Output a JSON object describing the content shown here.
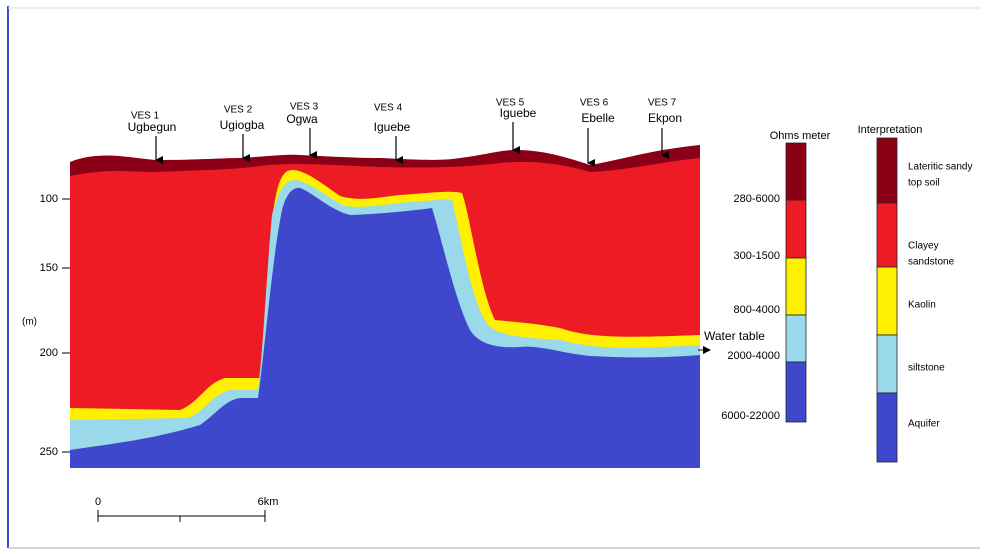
{
  "stations": [
    {
      "id": "VES 1",
      "name": "Ugbegun"
    },
    {
      "id": "VES 2",
      "name": "Ugiogba"
    },
    {
      "id": "VES 3",
      "name": "Ogwa"
    },
    {
      "id": "VES 4",
      "name": "Iguebe"
    },
    {
      "id": "VES 5",
      "name": "Iguebe"
    },
    {
      "id": "VES 6",
      "name": "Ebelle"
    },
    {
      "id": "VES 7",
      "name": "Ekpon"
    }
  ],
  "y_axis": {
    "unit": "(m)",
    "ticks": [
      100,
      150,
      200,
      250
    ]
  },
  "water_table": "Water table",
  "resistivity": {
    "title": "Ohms meter",
    "ranges": [
      "280-6000",
      "300-1500",
      "800-4000",
      "2000-4000",
      "6000-22000"
    ]
  },
  "interpretation": {
    "title": "Interpretation",
    "layers": [
      [
        "Lateritic sandy",
        "top soil"
      ],
      [
        "Clayey",
        "sandstone"
      ],
      [
        "Kaolin"
      ],
      [
        "siltstone"
      ],
      [
        "Aquifer"
      ]
    ]
  },
  "scale": {
    "start": 0,
    "end": "6km"
  }
}
